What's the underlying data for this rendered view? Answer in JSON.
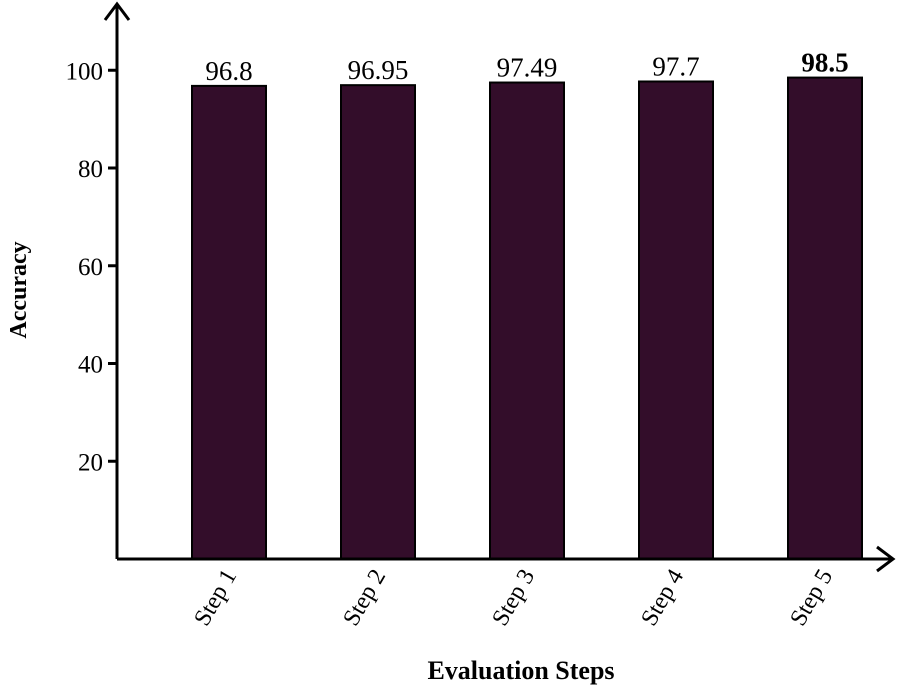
{
  "chart_data": {
    "type": "bar",
    "title": "",
    "xlabel": "Evaluation Steps",
    "ylabel": "Accuracy",
    "categories": [
      "Step 1",
      "Step 2",
      "Step 3",
      "Step 4",
      "Step 5"
    ],
    "values": [
      96.8,
      96.95,
      97.49,
      97.7,
      98.5
    ],
    "data_labels": [
      "96.8",
      "96.95",
      "97.49",
      "97.7",
      "98.5"
    ],
    "bold_labels": [
      false,
      false,
      false,
      false,
      true
    ],
    "y_ticks": [
      20,
      40,
      60,
      80,
      100
    ],
    "ylim": [
      0,
      110
    ],
    "grid": false,
    "legend": "none",
    "colors": {
      "bar_fill": "#330d2a",
      "bar_stroke": "#000000",
      "axis": "#000000"
    }
  }
}
